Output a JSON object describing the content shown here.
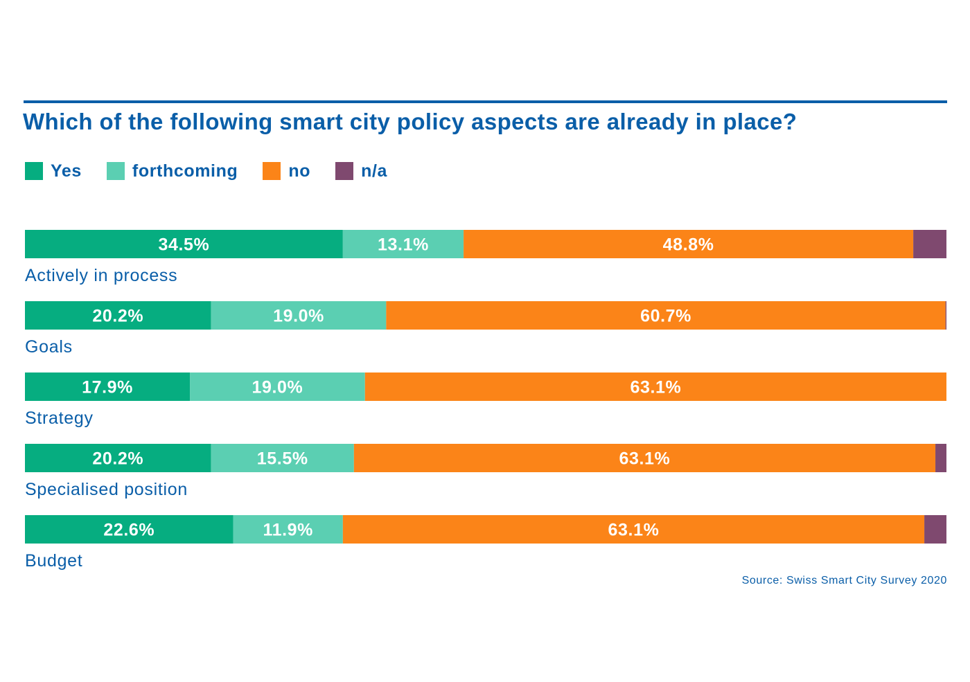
{
  "chart_data": {
    "type": "bar",
    "orientation": "horizontal",
    "stacked": true,
    "title": "Which of the following smart city policy aspects are already in place?",
    "categories": [
      "Actively in process",
      "Goals",
      "Strategy",
      "Specialised position",
      "Budget"
    ],
    "series": [
      {
        "name": "Yes",
        "color": "#06ad80",
        "values": [
          34.5,
          20.2,
          17.9,
          20.2,
          22.6
        ],
        "labels": [
          "34.5%",
          "20.2%",
          "17.9%",
          "20.2%",
          "22.6%"
        ]
      },
      {
        "name": "forthcoming",
        "color": "#5bcfb2",
        "values": [
          13.1,
          19.0,
          19.0,
          15.5,
          11.9
        ],
        "labels": [
          "13.1%",
          "19.0%",
          "19.0%",
          "15.5%",
          "11.9%"
        ]
      },
      {
        "name": "no",
        "color": "#fb8418",
        "values": [
          48.8,
          60.7,
          63.1,
          63.1,
          63.1
        ],
        "labels": [
          "48.8%",
          "60.7%",
          "63.1%",
          "63.1%",
          "63.1%"
        ]
      },
      {
        "name": "n/a",
        "color": "#7f496f",
        "values": [
          3.6,
          0.1,
          0.0,
          1.2,
          2.4
        ],
        "labels": [
          "",
          "",
          "",
          "",
          ""
        ]
      }
    ],
    "xlim": [
      0,
      100
    ],
    "grid": false,
    "legend": "top-left",
    "source": "Source: Swiss Smart City Survey 2020"
  }
}
